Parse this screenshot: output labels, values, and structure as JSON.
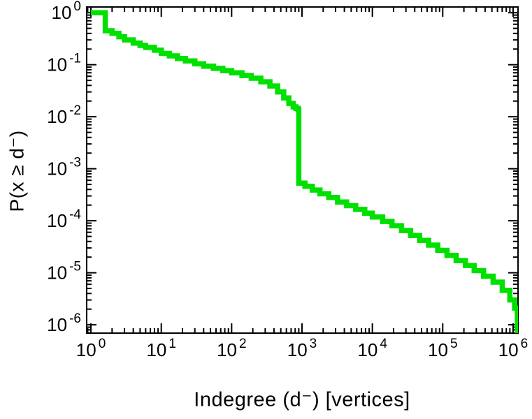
{
  "figure": {
    "background": "#ffffff",
    "border_color": "#000000"
  },
  "chart_data": {
    "type": "line",
    "title": "",
    "xlabel": "Indegree (d⁻) [vertices]",
    "ylabel": "P(x ≥ d⁻)",
    "x_scale": "log",
    "y_scale": "log",
    "xlim_log": [
      -0.06,
      6.07
    ],
    "ylim_log": [
      -6.16,
      0.11
    ],
    "tick_base": "10",
    "x_major_tick_exponents": [
      0,
      1,
      2,
      3,
      4,
      5,
      6
    ],
    "y_major_tick_exponents": [
      0,
      -1,
      -2,
      -3,
      -4,
      -5,
      -6
    ],
    "x_tick_labels": [
      "10^0",
      "10^1",
      "10^2",
      "10^3",
      "10^4",
      "10^5",
      "10^6"
    ],
    "y_tick_labels": [
      "10^0",
      "10^-1",
      "10^-2",
      "10^-3",
      "10^-4",
      "10^-5",
      "10^-6"
    ],
    "grid": false,
    "legend": "none",
    "axis_color": "#000000",
    "series": [
      {
        "name": "indegree-ccdf",
        "color": "#00e000",
        "line_width": 7.5,
        "step": true,
        "points": [
          [
            1,
            1.0
          ],
          [
            1.6,
            1.0
          ],
          [
            1.6,
            0.45
          ],
          [
            2,
            0.4
          ],
          [
            2.5,
            0.345
          ],
          [
            3,
            0.3
          ],
          [
            4,
            0.26
          ],
          [
            5,
            0.235
          ],
          [
            6,
            0.215
          ],
          [
            8,
            0.19
          ],
          [
            10,
            0.165
          ],
          [
            13,
            0.148
          ],
          [
            17,
            0.132
          ],
          [
            22,
            0.118
          ],
          [
            30,
            0.104
          ],
          [
            40,
            0.094
          ],
          [
            55,
            0.085
          ],
          [
            75,
            0.077
          ],
          [
            100,
            0.07
          ],
          [
            140,
            0.062
          ],
          [
            190,
            0.055
          ],
          [
            260,
            0.047
          ],
          [
            350,
            0.039
          ],
          [
            450,
            0.03
          ],
          [
            550,
            0.023
          ],
          [
            650,
            0.018
          ],
          [
            750,
            0.0155
          ],
          [
            820,
            0.0145
          ],
          [
            880,
            0.0138
          ],
          [
            900,
            0.00053
          ],
          [
            1100,
            0.00046
          ],
          [
            1400,
            0.00039
          ],
          [
            1800,
            0.00033
          ],
          [
            2400,
            0.00028
          ],
          [
            3200,
            0.00023
          ],
          [
            4300,
            0.000195
          ],
          [
            5800,
            0.000165
          ],
          [
            7800,
            0.00014
          ],
          [
            10000,
            0.000118
          ],
          [
            14000,
            9.7e-05
          ],
          [
            19000,
            8e-05
          ],
          [
            26000,
            6.5e-05
          ],
          [
            35000,
            5.2e-05
          ],
          [
            47000,
            4.2e-05
          ],
          [
            63000,
            3.4e-05
          ],
          [
            85000,
            2.7e-05
          ],
          [
            115000,
            2.15e-05
          ],
          [
            155000,
            1.72e-05
          ],
          [
            210000,
            1.38e-05
          ],
          [
            280000,
            1.1e-05
          ],
          [
            380000,
            8.6e-06
          ],
          [
            520000,
            6.6e-06
          ],
          [
            700000,
            4.6e-06
          ],
          [
            900000,
            3e-06
          ],
          [
            1050000,
            2.1e-06
          ],
          [
            1150000,
            6.9e-07
          ]
        ]
      }
    ]
  }
}
